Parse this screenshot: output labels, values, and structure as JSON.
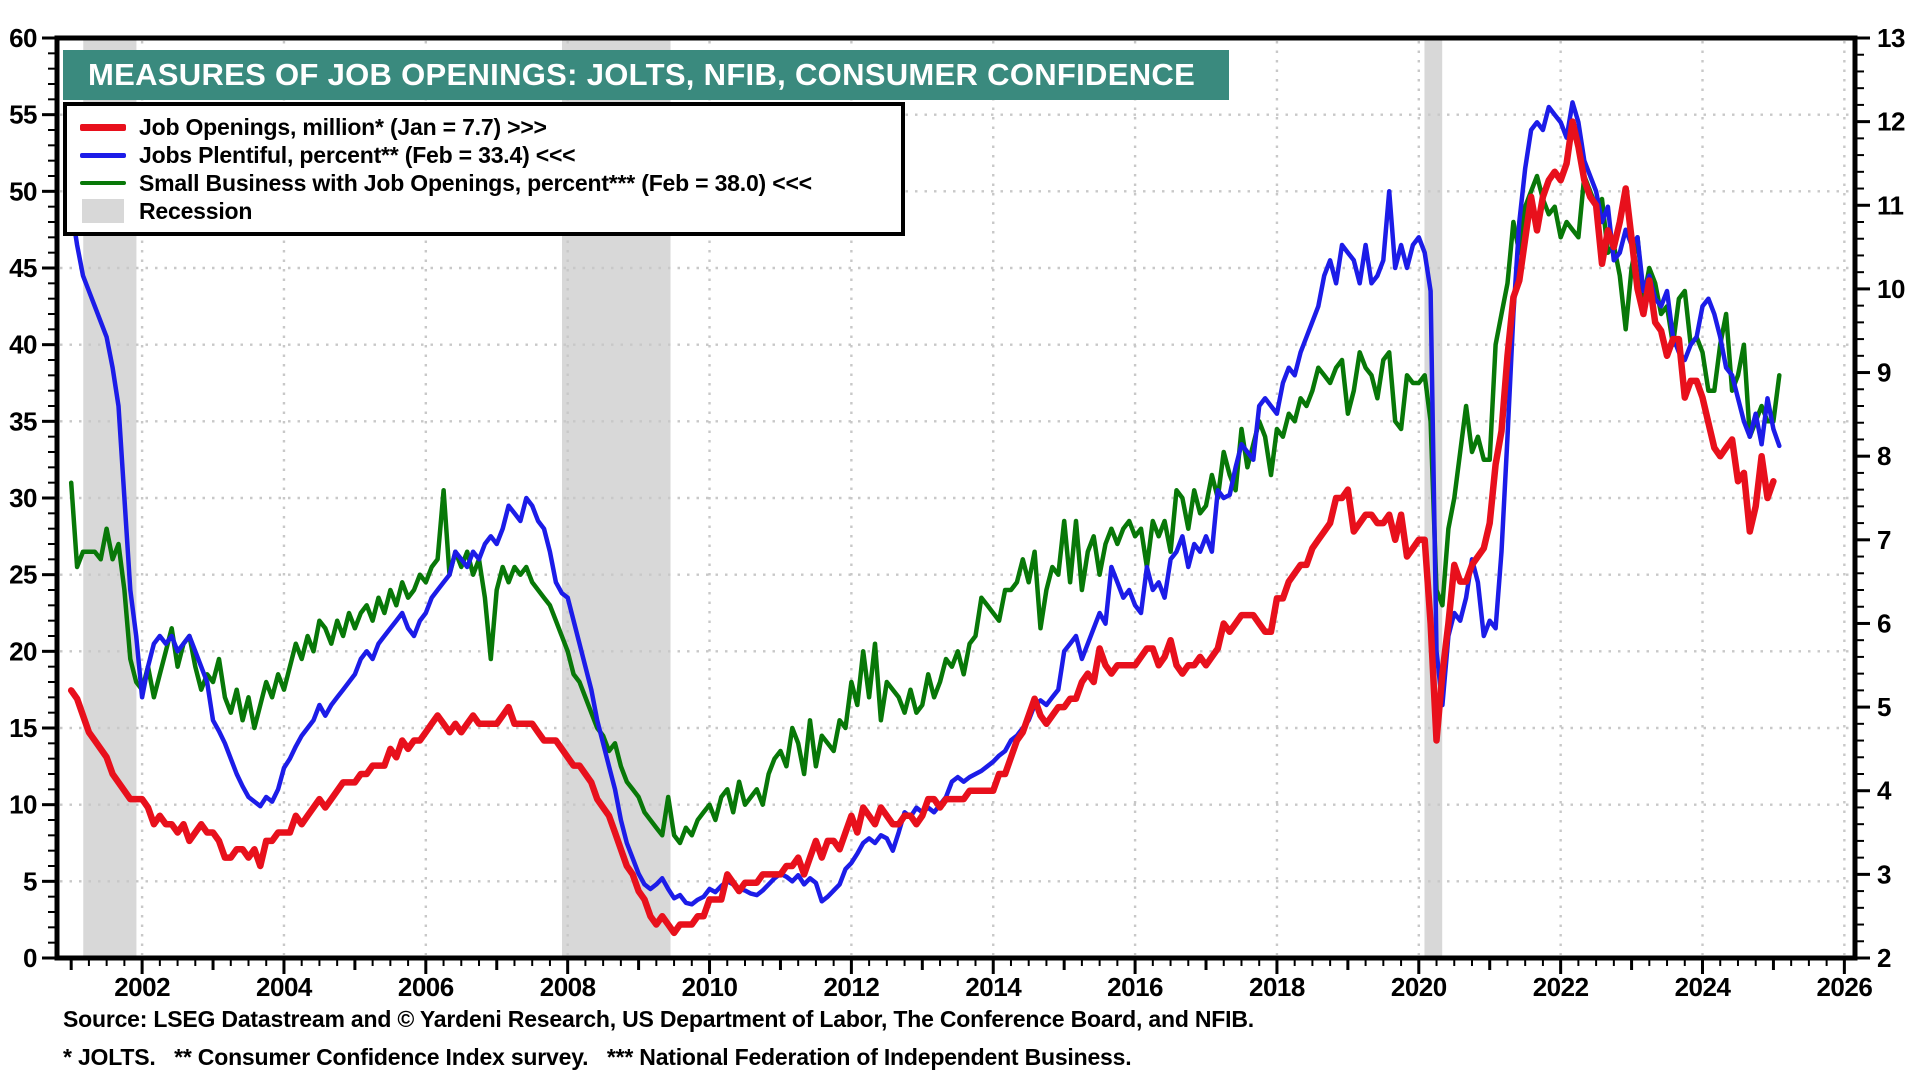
{
  "title": "MEASURES OF JOB OPENINGS: JOLTS, NFIB, CONSUMER CONFIDENCE",
  "colors": {
    "title_bar": "#3a8a7e",
    "red": "#e8101c",
    "blue": "#1c1ce8",
    "green": "#087808",
    "recession": "#d8d8d8",
    "grid": "#c8c8c8",
    "axis": "#000000"
  },
  "legend": {
    "items": [
      {
        "key": "red",
        "type": "line",
        "thickness": 7,
        "label": "Job Openings, million* (Jan = 7.7) >>>"
      },
      {
        "key": "blue",
        "type": "line",
        "thickness": 5,
        "label": "Jobs Plentiful, percent** (Feb = 33.4) <<<"
      },
      {
        "key": "green",
        "type": "line",
        "thickness": 4,
        "label": "Small Business with Job Openings, percent*** (Feb = 38.0) <<<"
      },
      {
        "key": "recession",
        "type": "box",
        "label": "Recession"
      }
    ]
  },
  "footer": {
    "line1": "Source: LSEG Datastream and © Yardeni Research, US Department of Labor, The Conference Board, and NFIB.",
    "line2": "* JOLTS.   ** Consumer Confidence Index survey.   *** National Federation of Independent Business."
  },
  "chart_data": {
    "type": "line",
    "title": "MEASURES OF JOB OPENINGS: JOLTS, NFIB, CONSUMER CONFIDENCE",
    "grid": true,
    "x_axis": {
      "min": 2000.8,
      "max": 2026.15,
      "tick_label_years": [
        "2002",
        "2004",
        "2006",
        "2008",
        "2010",
        "2012",
        "2014",
        "2016",
        "2018",
        "2020",
        "2022",
        "2024",
        "2026"
      ],
      "gridline_years": [
        2002,
        2004,
        2006,
        2008,
        2010,
        2012,
        2014,
        2016,
        2018,
        2020,
        2022,
        2024,
        2026
      ]
    },
    "y_left": {
      "min": 0,
      "max": 60,
      "step": 5,
      "tick_labels": [
        "0",
        "5",
        "10",
        "15",
        "20",
        "25",
        "30",
        "35",
        "40",
        "45",
        "50",
        "55",
        "60"
      ]
    },
    "y_right": {
      "min": 2,
      "max": 13,
      "step": 1,
      "tick_labels": [
        "2",
        "3",
        "4",
        "5",
        "6",
        "7",
        "8",
        "9",
        "10",
        "11",
        "12",
        "13"
      ]
    },
    "recessions": [
      {
        "start": 2001.17,
        "end": 2001.92
      },
      {
        "start": 2007.92,
        "end": 2009.45
      },
      {
        "start": 2020.08,
        "end": 2020.33
      }
    ],
    "series": [
      {
        "name": "Small Business with Job Openings, percent (NFIB)",
        "color_key": "green",
        "axis": "left",
        "line_width": 4.5,
        "start_year": 2001,
        "start_month": 1,
        "frequency": "monthly",
        "values": [
          31.0,
          25.5,
          26.5,
          26.5,
          26.5,
          26.0,
          28.0,
          26.0,
          27.0,
          24.0,
          19.5,
          18.0,
          17.5,
          19.0,
          17.0,
          18.5,
          20.0,
          21.5,
          19.0,
          20.5,
          21.0,
          19.0,
          17.5,
          18.5,
          18.0,
          19.5,
          17.0,
          16.0,
          17.5,
          15.5,
          17.0,
          15.0,
          16.5,
          18.0,
          17.0,
          18.5,
          17.5,
          19.0,
          20.5,
          19.5,
          21.0,
          20.0,
          22.0,
          21.5,
          20.5,
          22.0,
          21.0,
          22.5,
          21.5,
          22.5,
          23.0,
          22.0,
          23.5,
          22.5,
          24.0,
          23.0,
          24.5,
          23.5,
          24.0,
          25.0,
          24.5,
          25.5,
          26.0,
          30.5,
          25.0,
          26.5,
          25.5,
          26.5,
          25.0,
          26.0,
          23.5,
          19.5,
          24.0,
          25.5,
          24.5,
          25.5,
          25.0,
          25.5,
          24.5,
          24.0,
          23.5,
          23.0,
          22.0,
          21.0,
          20.0,
          18.5,
          18.0,
          17.0,
          16.0,
          15.0,
          14.5,
          13.5,
          14.0,
          12.5,
          11.5,
          11.0,
          10.5,
          9.5,
          9.0,
          8.5,
          8.0,
          10.5,
          8.0,
          7.5,
          8.5,
          8.0,
          9.0,
          9.5,
          10.0,
          9.0,
          10.5,
          11.0,
          9.5,
          11.5,
          10.0,
          10.5,
          11.0,
          10.0,
          12.0,
          13.0,
          13.5,
          12.5,
          15.0,
          14.0,
          12.0,
          15.5,
          12.5,
          14.5,
          14.0,
          13.5,
          15.5,
          15.0,
          18.0,
          16.5,
          20.0,
          17.0,
          20.5,
          15.5,
          18.0,
          17.5,
          17.0,
          16.0,
          17.5,
          16.0,
          16.5,
          18.5,
          17.0,
          18.0,
          19.5,
          19.0,
          20.0,
          18.5,
          20.5,
          21.0,
          23.5,
          23.0,
          22.5,
          22.0,
          24.0,
          24.0,
          24.5,
          26.0,
          24.5,
          26.5,
          21.5,
          24.0,
          25.5,
          25.0,
          28.5,
          24.5,
          28.5,
          24.0,
          26.5,
          27.5,
          25.0,
          27.0,
          28.0,
          27.0,
          28.0,
          28.5,
          27.5,
          28.0,
          25.5,
          28.5,
          27.5,
          28.5,
          26.5,
          30.5,
          30.0,
          28.0,
          30.5,
          29.0,
          29.5,
          31.5,
          30.0,
          33.0,
          31.5,
          30.5,
          34.5,
          32.0,
          33.5,
          35.0,
          34.0,
          31.5,
          34.5,
          34.0,
          35.5,
          35.0,
          36.5,
          36.0,
          37.0,
          38.5,
          38.0,
          37.5,
          38.5,
          39.0,
          35.5,
          37.0,
          39.5,
          38.5,
          38.0,
          36.5,
          39.0,
          39.5,
          35.0,
          34.5,
          38.0,
          37.5,
          37.5,
          38.0,
          35.0,
          24.0,
          23.0,
          28.0,
          30.0,
          33.0,
          36.0,
          33.0,
          34.0,
          32.5,
          32.5,
          40.0,
          42.0,
          44.0,
          48.0,
          46.0,
          49.0,
          50.0,
          51.0,
          49.5,
          48.5,
          49.0,
          47.0,
          48.0,
          47.5,
          47.0,
          51.0,
          50.0,
          49.0,
          49.5,
          46.0,
          46.5,
          44.5,
          41.0,
          45.0,
          47.0,
          43.0,
          45.0,
          44.0,
          42.0,
          42.5,
          40.0,
          43.0,
          43.5,
          40.0,
          40.5,
          39.5,
          37.0,
          37.0,
          40.0,
          42.0,
          37.0,
          38.0,
          40.0,
          34.0,
          35.0,
          36.0,
          35.0,
          35.0,
          38.0
        ]
      },
      {
        "name": "Jobs Plentiful, percent (Consumer Confidence survey)",
        "color_key": "blue",
        "axis": "left",
        "line_width": 4.5,
        "start_year": 2001,
        "start_month": 1,
        "frequency": "monthly",
        "values": [
          49.0,
          46.5,
          44.5,
          43.5,
          42.5,
          41.5,
          40.5,
          38.5,
          36.0,
          30.0,
          24.0,
          21.0,
          17.0,
          19.0,
          20.5,
          21.0,
          20.5,
          21.0,
          20.0,
          20.5,
          21.0,
          20.0,
          19.0,
          18.0,
          15.5,
          14.8,
          14.0,
          13.0,
          12.0,
          11.2,
          10.5,
          10.2,
          9.9,
          10.5,
          10.2,
          11.0,
          12.4,
          13.0,
          13.8,
          14.5,
          15.0,
          15.5,
          16.5,
          15.8,
          16.5,
          17.0,
          17.5,
          18.0,
          18.5,
          19.5,
          20.0,
          19.5,
          20.5,
          21.0,
          21.5,
          22.0,
          22.5,
          21.5,
          21.0,
          22.0,
          22.5,
          23.5,
          24.0,
          24.5,
          25.0,
          26.5,
          26.0,
          25.5,
          26.5,
          26.0,
          27.0,
          27.5,
          27.0,
          28.0,
          29.5,
          29.0,
          28.5,
          30.0,
          29.5,
          28.5,
          28.0,
          26.5,
          24.5,
          23.8,
          23.5,
          22.0,
          20.5,
          19.0,
          17.5,
          15.5,
          14.0,
          12.5,
          11.0,
          9.0,
          7.5,
          6.5,
          5.5,
          4.8,
          4.5,
          4.8,
          5.2,
          4.5,
          3.9,
          4.1,
          3.6,
          3.5,
          3.8,
          4.0,
          4.5,
          4.3,
          4.7,
          5.0,
          4.8,
          4.5,
          4.4,
          4.2,
          4.1,
          4.4,
          4.8,
          5.2,
          5.5,
          5.3,
          5.0,
          5.4,
          4.8,
          5.2,
          4.9,
          3.7,
          4.0,
          4.4,
          4.8,
          5.8,
          6.2,
          6.8,
          7.5,
          7.8,
          7.5,
          8.0,
          7.8,
          7.0,
          8.2,
          9.5,
          9.2,
          9.8,
          9.5,
          9.8,
          9.5,
          10.0,
          10.5,
          11.5,
          11.8,
          11.5,
          11.8,
          12.0,
          12.2,
          12.5,
          12.8,
          13.2,
          13.5,
          14.2,
          14.5,
          15.0,
          15.5,
          16.5,
          16.8,
          16.5,
          17.0,
          17.5,
          20.0,
          20.5,
          21.0,
          19.5,
          20.5,
          21.5,
          22.5,
          21.8,
          25.5,
          24.5,
          23.5,
          24.0,
          23.0,
          22.5,
          25.5,
          24.0,
          24.5,
          23.5,
          26.0,
          26.5,
          27.5,
          25.5,
          27.0,
          26.5,
          27.5,
          26.5,
          30.5,
          30.0,
          30.2,
          32.0,
          33.5,
          33.0,
          32.5,
          36.0,
          36.5,
          36.0,
          35.5,
          37.5,
          38.5,
          38.0,
          39.5,
          40.5,
          41.5,
          42.5,
          44.5,
          45.5,
          44.0,
          46.5,
          46.0,
          45.5,
          44.0,
          46.5,
          44.0,
          44.5,
          45.5,
          50.0,
          45.0,
          46.5,
          45.0,
          46.5,
          47.0,
          46.0,
          43.5,
          20.0,
          16.5,
          21.0,
          22.5,
          22.0,
          23.5,
          26.0,
          24.5,
          21.0,
          22.0,
          21.5,
          26.5,
          34.0,
          42.0,
          48.0,
          51.5,
          54.0,
          54.5,
          54.0,
          55.5,
          55.0,
          54.5,
          53.5,
          55.8,
          54.5,
          52.0,
          51.0,
          50.0,
          48.0,
          49.0,
          45.5,
          46.0,
          47.5,
          46.5,
          47.0,
          43.5,
          44.5,
          43.0,
          42.5,
          43.5,
          40.5,
          39.5,
          39.0,
          40.0,
          40.5,
          42.5,
          43.0,
          42.0,
          40.5,
          38.5,
          38.0,
          36.5,
          35.0,
          34.0,
          35.5,
          33.5,
          36.5,
          34.5,
          33.4
        ]
      },
      {
        "name": "Job Openings, million (JOLTS)",
        "color_key": "red",
        "axis": "right",
        "line_width": 6.5,
        "start_year": 2001,
        "start_month": 1,
        "frequency": "monthly",
        "values": [
          5.2,
          5.1,
          4.9,
          4.7,
          4.6,
          4.5,
          4.4,
          4.2,
          4.1,
          4.0,
          3.9,
          3.9,
          3.9,
          3.8,
          3.6,
          3.7,
          3.6,
          3.6,
          3.5,
          3.6,
          3.4,
          3.5,
          3.6,
          3.5,
          3.5,
          3.4,
          3.2,
          3.2,
          3.3,
          3.3,
          3.2,
          3.3,
          3.1,
          3.4,
          3.4,
          3.5,
          3.5,
          3.5,
          3.7,
          3.6,
          3.7,
          3.8,
          3.9,
          3.8,
          3.9,
          4.0,
          4.1,
          4.1,
          4.1,
          4.2,
          4.2,
          4.3,
          4.3,
          4.3,
          4.5,
          4.4,
          4.6,
          4.5,
          4.6,
          4.6,
          4.7,
          4.8,
          4.9,
          4.8,
          4.7,
          4.8,
          4.7,
          4.8,
          4.9,
          4.8,
          4.8,
          4.8,
          4.8,
          4.9,
          5.0,
          4.8,
          4.8,
          4.8,
          4.8,
          4.7,
          4.6,
          4.6,
          4.6,
          4.5,
          4.4,
          4.3,
          4.3,
          4.2,
          4.1,
          3.9,
          3.8,
          3.7,
          3.5,
          3.3,
          3.1,
          3.0,
          2.8,
          2.7,
          2.5,
          2.4,
          2.5,
          2.4,
          2.3,
          2.4,
          2.4,
          2.4,
          2.5,
          2.5,
          2.7,
          2.7,
          2.7,
          3.0,
          2.9,
          2.8,
          2.9,
          2.9,
          2.9,
          3.0,
          3.0,
          3.0,
          3.0,
          3.1,
          3.1,
          3.2,
          3.0,
          3.2,
          3.4,
          3.2,
          3.4,
          3.4,
          3.3,
          3.5,
          3.7,
          3.5,
          3.8,
          3.7,
          3.6,
          3.8,
          3.7,
          3.6,
          3.6,
          3.7,
          3.7,
          3.6,
          3.7,
          3.9,
          3.9,
          3.8,
          3.9,
          3.9,
          3.9,
          3.9,
          4.0,
          4.0,
          4.0,
          4.0,
          4.0,
          4.2,
          4.2,
          4.4,
          4.6,
          4.7,
          4.9,
          5.1,
          4.9,
          4.8,
          4.9,
          5.0,
          5.0,
          5.1,
          5.1,
          5.3,
          5.4,
          5.3,
          5.7,
          5.5,
          5.4,
          5.5,
          5.5,
          5.5,
          5.5,
          5.6,
          5.7,
          5.7,
          5.5,
          5.6,
          5.8,
          5.5,
          5.4,
          5.5,
          5.5,
          5.6,
          5.5,
          5.6,
          5.7,
          6.0,
          5.9,
          6.0,
          6.1,
          6.1,
          6.1,
          6.0,
          5.9,
          5.9,
          6.3,
          6.3,
          6.5,
          6.6,
          6.7,
          6.7,
          6.9,
          7.0,
          7.1,
          7.2,
          7.5,
          7.5,
          7.6,
          7.1,
          7.2,
          7.3,
          7.3,
          7.2,
          7.2,
          7.3,
          7.0,
          7.3,
          6.8,
          6.9,
          7.0,
          7.0,
          6.0,
          4.6,
          5.4,
          6.0,
          6.7,
          6.5,
          6.5,
          6.7,
          6.8,
          6.9,
          7.2,
          7.9,
          8.3,
          9.2,
          9.9,
          10.1,
          10.6,
          11.1,
          10.7,
          11.1,
          11.3,
          11.4,
          11.3,
          11.5,
          12.0,
          11.7,
          11.3,
          11.1,
          11.0,
          10.3,
          10.7,
          10.5,
          10.8,
          11.2,
          10.6,
          10.0,
          9.7,
          10.1,
          9.6,
          9.5,
          9.2,
          9.4,
          9.4,
          8.7,
          8.9,
          8.9,
          8.7,
          8.4,
          8.1,
          8.0,
          8.1,
          8.2,
          7.7,
          7.8,
          7.1,
          7.4,
          8.0,
          7.5,
          7.7
        ]
      }
    ]
  }
}
